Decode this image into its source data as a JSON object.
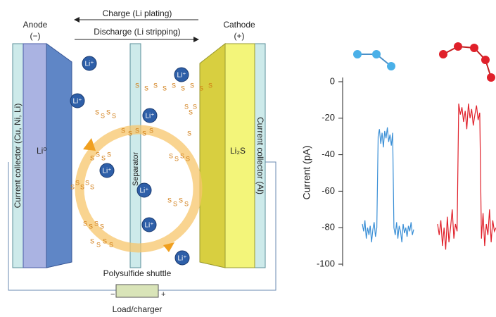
{
  "diagram": {
    "charge": "Charge (Li plating)",
    "discharge": "Discharge (Li stripping)",
    "anode": "Anode",
    "anode_sign": "(−)",
    "cathode": "Cathode",
    "cathode_sign": "(+)",
    "left_collector": "Current collector (Cu, Ni, Li)",
    "right_collector": "Current collector (Al)",
    "anode_material": "Li⁰",
    "cathode_material": "Li₂S",
    "separator": "Separator",
    "shuttle": "Polysulfide shuttle",
    "load": "Load/charger",
    "minus": "−",
    "plus": "+",
    "li_ion": "Li⁺",
    "sulfur": "S"
  },
  "chart_data": {
    "type": "line",
    "y_label": "Current (pA)",
    "ylim": [
      -100,
      0
    ],
    "yticks": [
      0,
      -20,
      -40,
      -60,
      -80,
      -100
    ],
    "series": [
      {
        "color": "#3a8fd6",
        "values": [
          -78,
          -82,
          -76,
          -86,
          -80,
          -84,
          -79,
          -88,
          -81,
          -77,
          -85,
          -80,
          -30,
          -26,
          -34,
          -28,
          -36,
          -27,
          -31,
          -25,
          -33,
          -29,
          -35,
          -28,
          -80,
          -84,
          -77,
          -86,
          -79,
          -82,
          -88,
          -78,
          -83,
          -80,
          -85,
          -79,
          -82,
          -77,
          -84,
          -81
        ]
      },
      {
        "color": "#e0202a",
        "values": [
          -78,
          -84,
          -76,
          -90,
          -80,
          -92,
          -74,
          -88,
          -80,
          -70,
          -86,
          -78,
          -82,
          -12,
          -18,
          -14,
          -22,
          -16,
          -26,
          -12,
          -20,
          -15,
          -24,
          -18,
          -13,
          -21,
          -17,
          -86,
          -72,
          -90,
          -78,
          -84,
          -70,
          -88,
          -76,
          -82,
          -80
        ]
      }
    ]
  }
}
